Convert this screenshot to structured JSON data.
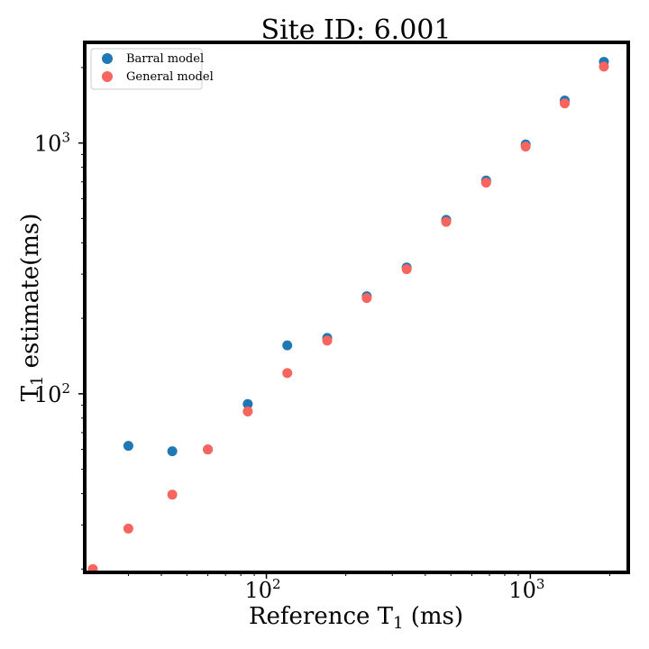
{
  "chart_data": {
    "type": "scatter",
    "title": "Site ID: 6.001",
    "xlabel": {
      "main": "Reference T",
      "sub": "1",
      "tail": " (ms)"
    },
    "ylabel": {
      "main": "T",
      "sub": "1",
      "tail": " estimate(ms)"
    },
    "xscale": "log",
    "yscale": "log",
    "xlim": [
      20.5,
      2350
    ],
    "ylim": [
      19.4,
      2520
    ],
    "grid": false,
    "legend_position": "top-left",
    "x_ticks": [
      {
        "value": 100,
        "base": "10",
        "exp": "2"
      },
      {
        "value": 1000,
        "base": "10",
        "exp": "3"
      }
    ],
    "y_ticks": [
      {
        "value": 100,
        "base": "10",
        "exp": "2"
      },
      {
        "value": 1000,
        "base": "10",
        "exp": "3"
      }
    ],
    "series": [
      {
        "name": "Barral model",
        "color": "#1f77b4",
        "points": [
          [
            30,
            62
          ],
          [
            44,
            59
          ],
          [
            60,
            60
          ],
          [
            85,
            91
          ],
          [
            120,
            156
          ],
          [
            170,
            167
          ],
          [
            240,
            245
          ],
          [
            340,
            319
          ],
          [
            480,
            494
          ],
          [
            680,
            709
          ],
          [
            960,
            987
          ],
          [
            1350,
            1478
          ],
          [
            1900,
            2108
          ]
        ]
      },
      {
        "name": "General model",
        "color": "#f8655f",
        "points": [
          [
            22,
            20
          ],
          [
            30,
            29
          ],
          [
            44,
            39.6
          ],
          [
            60,
            60
          ],
          [
            85,
            85
          ],
          [
            120,
            121
          ],
          [
            170,
            163
          ],
          [
            240,
            241
          ],
          [
            340,
            314
          ],
          [
            480,
            485
          ],
          [
            680,
            695
          ],
          [
            960,
            968
          ],
          [
            1350,
            1438
          ],
          [
            1900,
            2018
          ]
        ]
      }
    ]
  }
}
